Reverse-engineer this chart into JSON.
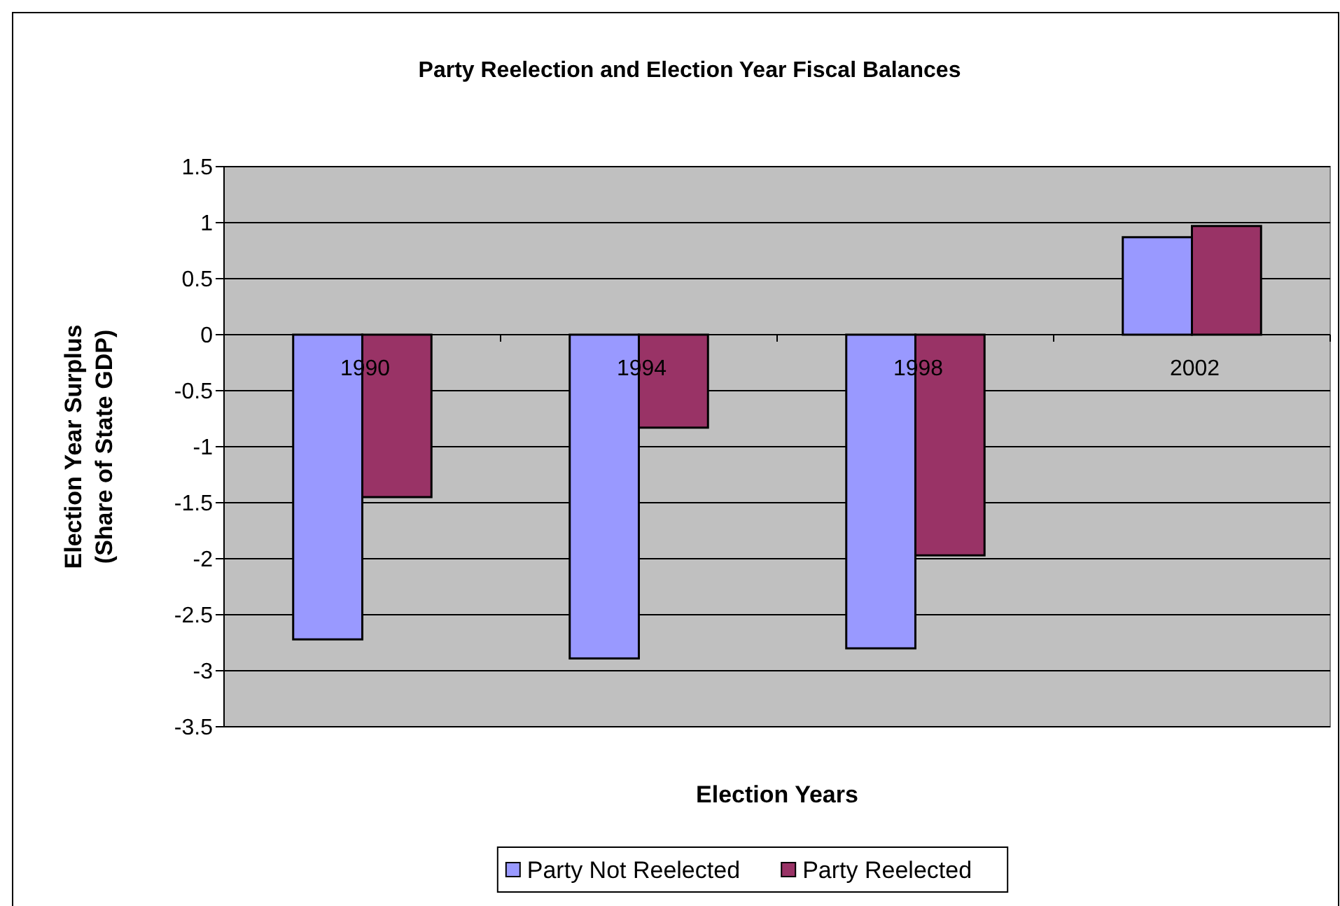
{
  "chart_data": {
    "type": "bar",
    "title": "Party Reelection and Election Year Fiscal Balances",
    "xlabel": "Election Years",
    "ylabel": "Election Year Surplus (Share of State GDP)",
    "categories": [
      "1990",
      "1994",
      "1998",
      "2002"
    ],
    "series": [
      {
        "name": "Party Not Reelected",
        "color": "#9999ff",
        "values": [
          -2.72,
          -2.89,
          -2.8,
          0.87
        ]
      },
      {
        "name": "Party Reelected",
        "color": "#993366",
        "values": [
          -1.45,
          -0.83,
          -1.97,
          0.97
        ]
      }
    ],
    "ylim": [
      -3.5,
      1.5
    ],
    "yticks": [
      -3.5,
      -3,
      -2.5,
      -2,
      -1.5,
      -1,
      -0.5,
      0,
      0.5,
      1,
      1.5
    ],
    "grid": "y",
    "legend": "bottom"
  }
}
